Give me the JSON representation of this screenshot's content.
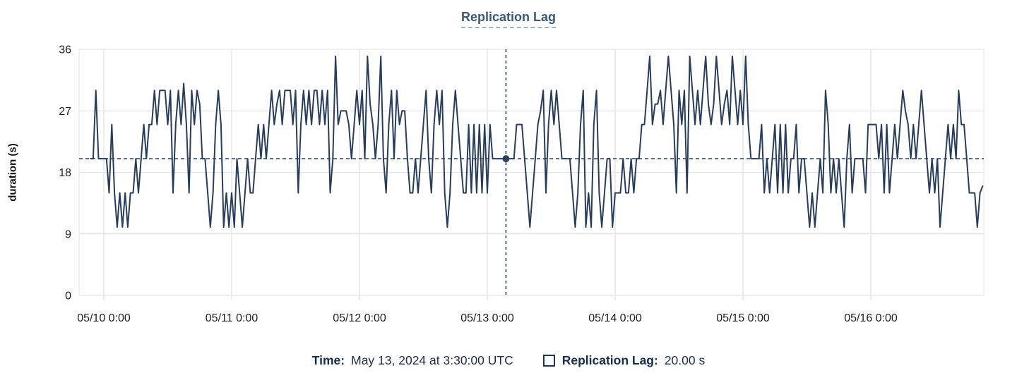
{
  "title": "Replication Lag",
  "colors": {
    "series": "#283d5c",
    "grid": "#e8e8e8",
    "plot_border": "#ececec",
    "crosshair_vertical": "#3f5d68",
    "crosshair_horizontal": "#2e4b6e",
    "crosshair_dot": "#2c3f5e",
    "axis_text": "#1d1d1f",
    "title_text": "#3a5a7a",
    "tooltip_text": "#1c2f4a"
  },
  "y_axis": {
    "label": "duration (s)",
    "ticks": [
      0,
      9,
      18,
      27,
      36
    ]
  },
  "x_axis": {
    "tick_labels": [
      "05/10 0:00",
      "05/11 0:00",
      "05/12 0:00",
      "05/13 0:00",
      "05/14 0:00",
      "05/15 0:00",
      "05/16 0:00"
    ],
    "tick_indices": [
      5,
      53,
      101,
      149,
      197,
      245,
      293
    ]
  },
  "crosshair": {
    "point_index": 156,
    "value": 20,
    "reference_value": 20
  },
  "tooltip": {
    "time_label": "Time:",
    "time_value": "May 13, 2024 at 3:30:00 UTC",
    "series_label": "Replication Lag:",
    "series_value": "20.00 s"
  },
  "chart_data": {
    "type": "line",
    "title": "Replication Lag",
    "xlabel": "",
    "ylabel": "duration (s)",
    "ylim": [
      0,
      36
    ],
    "yticks": [
      0,
      9,
      18,
      27,
      36
    ],
    "grid": true,
    "legend_position": "bottom-tooltip",
    "x_start": "2024-05-09 21:30 UTC",
    "interval_minutes": 30,
    "x_tick_labels": [
      "05/10 0:00",
      "05/11 0:00",
      "05/12 0:00",
      "05/13 0:00",
      "05/14 0:00",
      "05/15 0:00",
      "05/16 0:00"
    ],
    "hover_point": {
      "time": "May 13, 2024 at 3:30:00 UTC",
      "value_s": 20.0
    },
    "series": [
      {
        "name": "Replication Lag",
        "unit": "s",
        "values": [
          20,
          20,
          30,
          20,
          20,
          20,
          20,
          15,
          25,
          15,
          10,
          15,
          10,
          15,
          10,
          15,
          15,
          20,
          15,
          20,
          25,
          20,
          25,
          25,
          30,
          25,
          30,
          30,
          30,
          25,
          30,
          15,
          25,
          30,
          25,
          31,
          25,
          15,
          30,
          25,
          30,
          28,
          20,
          20,
          15,
          10,
          15,
          25,
          30,
          25,
          10,
          15,
          10,
          15,
          10,
          20,
          15,
          10,
          15,
          20,
          15,
          15,
          20,
          25,
          20,
          25,
          20,
          25,
          30,
          25,
          28,
          30,
          25,
          30,
          30,
          30,
          25,
          30,
          15,
          25,
          30,
          25,
          30,
          25,
          30,
          30,
          25,
          30,
          25,
          30,
          15,
          20,
          35,
          25,
          27,
          27,
          27,
          25,
          20,
          25,
          30,
          25,
          30,
          20,
          35,
          28,
          25,
          20,
          25,
          35,
          20,
          15,
          25,
          30,
          20,
          30,
          25,
          27,
          27,
          20,
          15,
          15,
          20,
          15,
          20,
          25,
          30,
          20,
          15,
          25,
          30,
          25,
          30,
          15,
          10,
          15,
          25,
          30,
          25,
          20,
          15,
          15,
          25,
          15,
          25,
          15,
          25,
          15,
          25,
          15,
          25,
          20,
          20,
          20,
          20,
          20,
          20,
          20,
          20,
          20,
          25,
          25,
          25,
          20,
          15,
          10,
          15,
          20,
          25,
          27,
          30,
          15,
          25,
          30,
          25,
          30,
          25,
          20,
          20,
          20,
          20,
          15,
          10,
          15,
          25,
          30,
          10,
          15,
          10,
          25,
          30,
          15,
          10,
          15,
          20,
          20,
          10,
          15,
          15,
          15,
          20,
          15,
          15,
          20,
          15,
          20,
          20,
          25,
          25,
          30,
          35,
          25,
          28,
          28,
          30,
          25,
          30,
          35,
          30,
          25,
          15,
          30,
          25,
          30,
          15,
          35,
          30,
          25,
          30,
          25,
          30,
          35,
          28,
          25,
          28,
          35,
          30,
          25,
          28,
          30,
          25,
          35,
          30,
          25,
          30,
          25,
          35,
          25,
          20,
          20,
          20,
          20,
          25,
          15,
          20,
          15,
          20,
          25,
          15,
          25,
          15,
          25,
          15,
          20,
          20,
          25,
          15,
          20,
          20,
          15,
          10,
          15,
          10,
          15,
          20,
          15,
          30,
          25,
          15,
          20,
          15,
          20,
          15,
          10,
          20,
          25,
          15,
          20,
          20,
          20,
          20,
          15,
          25,
          25,
          25,
          25,
          20,
          25,
          15,
          25,
          15,
          20,
          25,
          20,
          25,
          30,
          27,
          25,
          20,
          25,
          20,
          25,
          30,
          25,
          20,
          15,
          20,
          15,
          20,
          10,
          15,
          20,
          25,
          20,
          25,
          20,
          30,
          25,
          25,
          20,
          15,
          15,
          15,
          10,
          15,
          16
        ]
      }
    ]
  }
}
